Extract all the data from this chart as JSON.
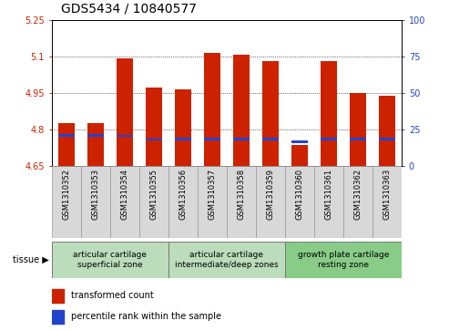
{
  "title": "GDS5434 / 10840577",
  "samples": [
    "GSM1310352",
    "GSM1310353",
    "GSM1310354",
    "GSM1310355",
    "GSM1310356",
    "GSM1310357",
    "GSM1310358",
    "GSM1310359",
    "GSM1310360",
    "GSM1310361",
    "GSM1310362",
    "GSM1310363"
  ],
  "red_values": [
    4.825,
    4.825,
    5.093,
    4.972,
    4.965,
    5.115,
    5.105,
    5.082,
    4.735,
    5.082,
    4.948,
    4.937
  ],
  "blue_values": [
    4.773,
    4.775,
    4.772,
    4.757,
    4.76,
    4.76,
    4.76,
    4.76,
    4.748,
    4.76,
    4.76,
    4.76
  ],
  "ylim_left": [
    4.65,
    5.25
  ],
  "ylim_right": [
    0,
    100
  ],
  "yticks_left": [
    4.65,
    4.8,
    4.95,
    5.1,
    5.25
  ],
  "yticks_right": [
    0,
    25,
    50,
    75,
    100
  ],
  "ytick_labels_left": [
    "4.65",
    "4.8",
    "4.95",
    "5.1",
    "5.25"
  ],
  "ytick_labels_right": [
    "0",
    "25",
    "50",
    "75",
    "100"
  ],
  "bar_width": 0.55,
  "red_color": "#cc2200",
  "blue_color": "#2244cc",
  "tissue_groups": [
    {
      "label": "articular cartilage\nsuperficial zone",
      "start": 0,
      "end": 3,
      "color": "#bbddbb"
    },
    {
      "label": "articular cartilage\nintermediate/deep zones",
      "start": 4,
      "end": 7,
      "color": "#bbddbb"
    },
    {
      "label": "growth plate cartilage\nresting zone",
      "start": 8,
      "end": 11,
      "color": "#88cc88"
    }
  ],
  "tissue_label": "tissue",
  "legend_red": "transformed count",
  "legend_blue": "percentile rank within the sample",
  "plot_bg": "#ffffff",
  "fig_bg": "#ffffff",
  "title_fontsize": 10,
  "tick_fontsize": 7,
  "sample_fontsize": 6,
  "tissue_fontsize": 6.5,
  "legend_fontsize": 7,
  "grid_yticks": [
    4.8,
    4.95,
    5.1
  ],
  "blue_bar_height": 0.011,
  "n_samples": 12
}
